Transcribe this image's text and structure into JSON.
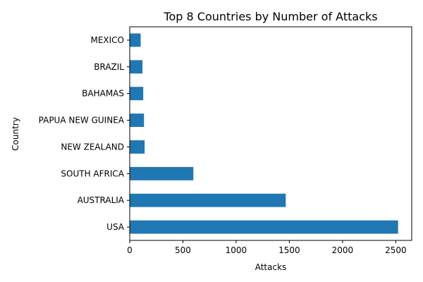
{
  "chart_data": {
    "type": "bar",
    "orientation": "horizontal",
    "title": "Top 8 Countries by Number of Attacks",
    "xlabel": "Attacks",
    "ylabel": "Country",
    "categories": [
      "USA",
      "AUSTRALIA",
      "SOUTH AFRICA",
      "NEW ZEALAND",
      "PAPUA NEW GUINEA",
      "BAHAMAS",
      "BRAZIL",
      "MEXICO"
    ],
    "values": [
      2522,
      1466,
      598,
      140,
      134,
      127,
      120,
      103
    ],
    "xlim": [
      0,
      2650
    ],
    "xticks": [
      0,
      500,
      1000,
      1500,
      2000,
      2500
    ],
    "grid": false,
    "legend": "none",
    "bar_color": "#1f77b4"
  }
}
